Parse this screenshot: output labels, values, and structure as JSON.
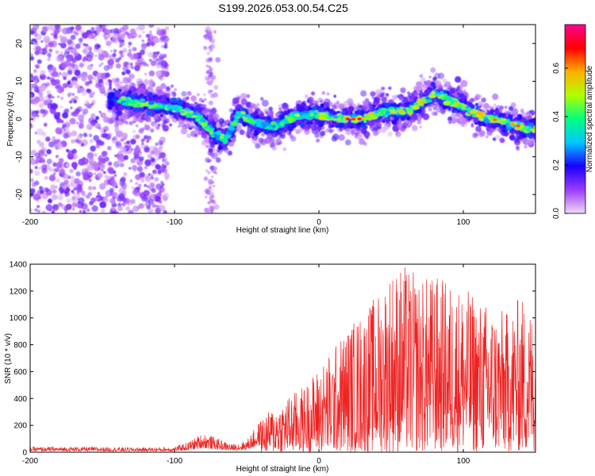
{
  "title": "S199.2026.053.00.54.C25",
  "chart_data": [
    {
      "type": "heatmap",
      "title": "S199.2026.053.00.54.C25",
      "xlabel": "Height of straight line (km)",
      "ylabel": "Frequency (Hz)",
      "xlim": [
        -200,
        150
      ],
      "ylim": [
        -25,
        25
      ],
      "x_ticks": [
        -200,
        -100,
        0,
        100
      ],
      "y_ticks": [
        -20,
        -10,
        0,
        10,
        20
      ],
      "ridge": {
        "x": [
          -140,
          -120,
          -100,
          -85,
          -75,
          -65,
          -55,
          -45,
          -30,
          -15,
          0,
          15,
          30,
          45,
          60,
          70,
          80,
          90,
          100,
          110,
          120,
          130,
          140,
          150
        ],
        "freq": [
          5,
          4,
          3,
          1,
          -3,
          -6,
          2,
          -1,
          -2,
          1,
          1,
          0,
          0,
          2,
          2,
          4,
          7,
          5,
          3,
          1,
          0,
          -1,
          -2,
          -3
        ]
      },
      "colorbar": {
        "label": "Normalized spectral amplitude",
        "range": [
          0.0,
          0.78
        ],
        "ticks": [
          0.0,
          0.2,
          0.4,
          0.6
        ],
        "tick_labels": [
          "0.0",
          "0.2",
          "0.4",
          "0.6"
        ],
        "colors": [
          "#f2d8f2",
          "#9a3cff",
          "#1a00ff",
          "#00c8ff",
          "#00ff80",
          "#b0ff00",
          "#ffb000",
          "#ff0000",
          "#ff0090"
        ]
      }
    },
    {
      "type": "line",
      "xlabel": "Height of straight line (km)",
      "ylabel": "SNR (10 * v/v)",
      "xlim": [
        -200,
        150
      ],
      "ylim": [
        0,
        1400
      ],
      "x_ticks": [
        -200,
        -100,
        0,
        100
      ],
      "y_ticks": [
        0,
        200,
        400,
        600,
        800,
        1000,
        1200,
        1400
      ],
      "color": "#ee2222",
      "envelope": {
        "x": [
          -200,
          -160,
          -120,
          -100,
          -90,
          -80,
          -70,
          -60,
          -50,
          -40,
          -30,
          -20,
          -10,
          0,
          10,
          20,
          30,
          40,
          50,
          60,
          70,
          80,
          90,
          100,
          110,
          120,
          130,
          140,
          150
        ],
        "max": [
          40,
          40,
          35,
          40,
          80,
          150,
          100,
          60,
          90,
          250,
          350,
          430,
          500,
          640,
          780,
          950,
          1050,
          1180,
          1390,
          1400,
          1300,
          1330,
          1280,
          1240,
          1150,
          1100,
          1050,
          1180,
          1050
        ],
        "min": [
          0,
          0,
          0,
          0,
          0,
          0,
          0,
          0,
          0,
          0,
          0,
          0,
          0,
          0,
          0,
          0,
          0,
          0,
          0,
          0,
          0,
          0,
          0,
          0,
          0,
          0,
          0,
          0,
          0
        ]
      }
    }
  ]
}
